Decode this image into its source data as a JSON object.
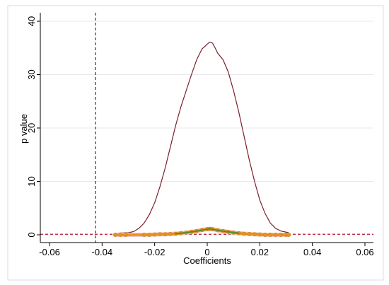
{
  "chart_data": {
    "type": "line",
    "title": "",
    "xlabel": "Coefficients",
    "ylabel": "p value",
    "xlim": [
      -0.06,
      0.06
    ],
    "ylim": [
      0,
      40
    ],
    "x_ticks": [
      -0.06,
      -0.04,
      -0.02,
      0,
      0.02,
      0.04,
      0.06
    ],
    "x_tick_labels": [
      "-0.06",
      "-0.04",
      "-0.02",
      "0",
      "0.02",
      "0.04",
      "0.06"
    ],
    "y_ticks": [
      0,
      10,
      20,
      30,
      40
    ],
    "y_tick_labels": [
      "0",
      "10",
      "20",
      "30",
      "40"
    ],
    "grid": "horizontal",
    "legend": "none",
    "reference_lines": [
      {
        "axis": "x",
        "value": -0.0425,
        "style": "dashed",
        "color": "#b0102a"
      },
      {
        "axis": "y",
        "value": 0.1,
        "style": "dashed",
        "color": "#b0102a"
      }
    ],
    "series": [
      {
        "kind": "density_line",
        "color": "#7a1f2b",
        "points": [
          [
            -0.035,
            0.3
          ],
          [
            -0.03,
            0.4
          ],
          [
            -0.028,
            0.6
          ],
          [
            -0.026,
            1.2
          ],
          [
            -0.024,
            2.2
          ],
          [
            -0.022,
            3.8
          ],
          [
            -0.02,
            6.0
          ],
          [
            -0.018,
            9.0
          ],
          [
            -0.016,
            12.5
          ],
          [
            -0.014,
            16.5
          ],
          [
            -0.012,
            20.5
          ],
          [
            -0.01,
            24.0
          ],
          [
            -0.008,
            27.0
          ],
          [
            -0.006,
            30.0
          ],
          [
            -0.004,
            32.8
          ],
          [
            -0.002,
            34.8
          ],
          [
            0.0,
            35.7
          ],
          [
            0.001,
            36.1
          ],
          [
            0.002,
            35.9
          ],
          [
            0.003,
            35.0
          ],
          [
            0.004,
            34.0
          ],
          [
            0.006,
            32.8
          ],
          [
            0.008,
            30.5
          ],
          [
            0.01,
            27.0
          ],
          [
            0.012,
            23.0
          ],
          [
            0.014,
            18.5
          ],
          [
            0.016,
            14.0
          ],
          [
            0.018,
            10.0
          ],
          [
            0.02,
            6.5
          ],
          [
            0.022,
            4.0
          ],
          [
            0.024,
            2.2
          ],
          [
            0.026,
            1.2
          ],
          [
            0.028,
            0.7
          ],
          [
            0.031,
            0.4
          ]
        ]
      },
      {
        "kind": "scatter_band",
        "color": "#e8941a",
        "points": [
          [
            -0.035,
            0.0
          ],
          [
            -0.033,
            0.0
          ],
          [
            -0.031,
            0.0
          ],
          [
            -0.024,
            0.0
          ],
          [
            -0.022,
            0.0
          ],
          [
            -0.02,
            0.05
          ],
          [
            -0.018,
            0.1
          ],
          [
            -0.016,
            0.1
          ],
          [
            -0.014,
            0.15
          ],
          [
            -0.012,
            0.2
          ],
          [
            -0.01,
            0.3
          ],
          [
            -0.008,
            0.4
          ],
          [
            -0.006,
            0.55
          ],
          [
            -0.004,
            0.7
          ],
          [
            -0.002,
            0.9
          ],
          [
            0.0,
            1.05
          ],
          [
            0.001,
            1.1
          ],
          [
            0.002,
            1.05
          ],
          [
            0.004,
            0.85
          ],
          [
            0.006,
            0.7
          ],
          [
            0.008,
            0.55
          ],
          [
            0.01,
            0.4
          ],
          [
            0.012,
            0.3
          ],
          [
            0.014,
            0.2
          ],
          [
            0.016,
            0.15
          ],
          [
            0.018,
            0.1
          ],
          [
            0.02,
            0.05
          ],
          [
            0.022,
            0.0
          ],
          [
            0.024,
            0.0
          ],
          [
            0.026,
            0.0
          ],
          [
            0.028,
            0.0
          ],
          [
            0.03,
            0.0
          ],
          [
            0.031,
            0.0
          ]
        ]
      },
      {
        "kind": "band_center",
        "color": "#5b8a2a",
        "points": [
          [
            -0.012,
            0.2
          ],
          [
            -0.008,
            0.4
          ],
          [
            -0.004,
            0.7
          ],
          [
            0.0,
            1.05
          ],
          [
            0.001,
            1.1
          ],
          [
            0.004,
            0.85
          ],
          [
            0.008,
            0.55
          ],
          [
            0.012,
            0.3
          ]
        ]
      }
    ]
  }
}
